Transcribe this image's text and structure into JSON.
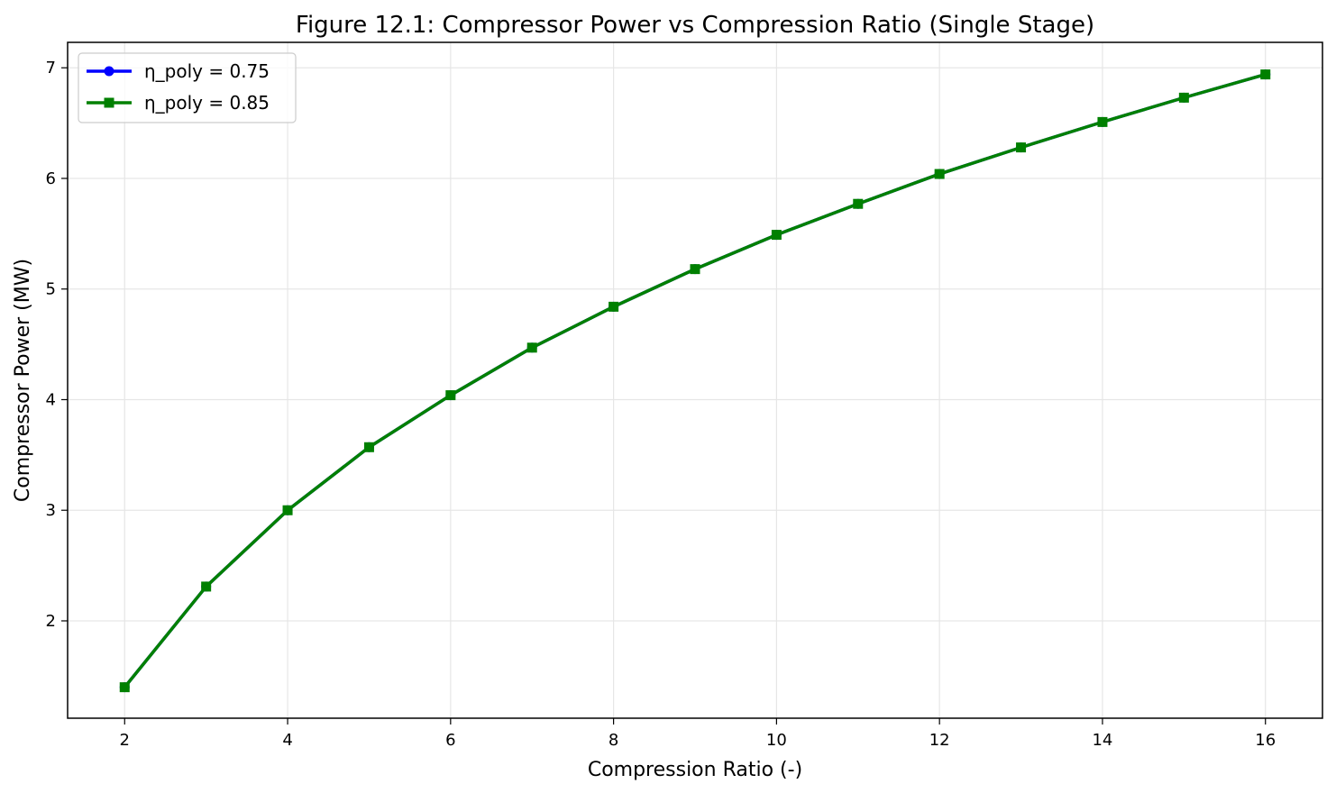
{
  "chart_data": {
    "type": "line",
    "title": "Figure 12.1: Compressor Power vs Compression Ratio (Single Stage)",
    "xlabel": "Compression Ratio (-)",
    "ylabel": "Compressor Power (MW)",
    "xlim": [
      1.3,
      16.7
    ],
    "ylim": [
      1.12,
      7.23
    ],
    "xticks": [
      2,
      4,
      6,
      8,
      10,
      12,
      14,
      16
    ],
    "yticks": [
      2,
      3,
      4,
      5,
      6,
      7
    ],
    "grid": true,
    "legend_position": "top-left",
    "x": [
      2,
      3,
      4,
      5,
      6,
      7,
      8,
      9,
      10,
      11,
      12,
      13,
      14,
      15,
      16
    ],
    "series": [
      {
        "name": "η_poly = 0.75",
        "color": "#0000ff",
        "marker": "circle",
        "values": [
          1.4,
          2.31,
          3.0,
          3.57,
          4.04,
          4.47,
          4.84,
          5.18,
          5.49,
          5.77,
          6.04,
          6.28,
          6.51,
          6.73,
          6.94
        ]
      },
      {
        "name": "η_poly = 0.85",
        "color": "#008000",
        "marker": "square",
        "values": [
          1.4,
          2.31,
          3.0,
          3.57,
          4.04,
          4.47,
          4.84,
          5.18,
          5.49,
          5.77,
          6.04,
          6.28,
          6.51,
          6.73,
          6.94
        ]
      }
    ]
  }
}
